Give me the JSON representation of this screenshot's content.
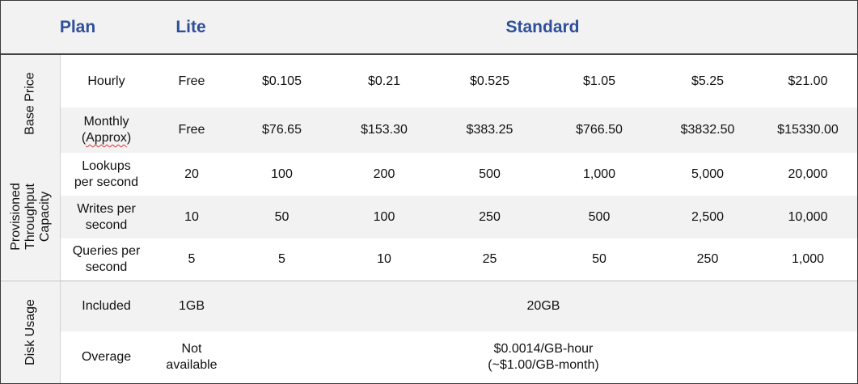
{
  "header": {
    "plan": "Plan",
    "lite": "Lite",
    "standard": "Standard"
  },
  "groups": {
    "base_price": "Base Price",
    "throughput": "Provisioned\nThroughput\nCapacity",
    "disk_usage": "Disk Usage"
  },
  "rows": {
    "hourly": {
      "label": "Hourly",
      "lite": "Free",
      "values": [
        "$0.105",
        "$0.21",
        "$0.525",
        "$1.05",
        "$5.25",
        "$21.00"
      ]
    },
    "monthly": {
      "label_line1": "Monthly",
      "label_open": "(",
      "label_word": "Approx",
      "label_close": ")",
      "lite": "Free",
      "values": [
        "$76.65",
        "$153.30",
        "$383.25",
        "$766.50",
        "$3832.50",
        "$15330.00"
      ]
    },
    "lookups": {
      "label": "Lookups\nper second",
      "lite": "20",
      "values": [
        "100",
        "200",
        "500",
        "1,000",
        "5,000",
        "20,000"
      ]
    },
    "writes": {
      "label": "Writes per\nsecond",
      "lite": "10",
      "values": [
        "50",
        "100",
        "250",
        "500",
        "2,500",
        "10,000"
      ]
    },
    "queries": {
      "label": "Queries per\nsecond",
      "lite": "5",
      "values": [
        "5",
        "10",
        "25",
        "50",
        "250",
        "1,000"
      ]
    },
    "included": {
      "label": "Included",
      "lite": "1GB",
      "standard": "20GB"
    },
    "overage": {
      "label": "Overage",
      "lite": "Not\navailable",
      "standard": "$0.0014/GB-hour\n(~$1.00/GB-month)"
    }
  }
}
